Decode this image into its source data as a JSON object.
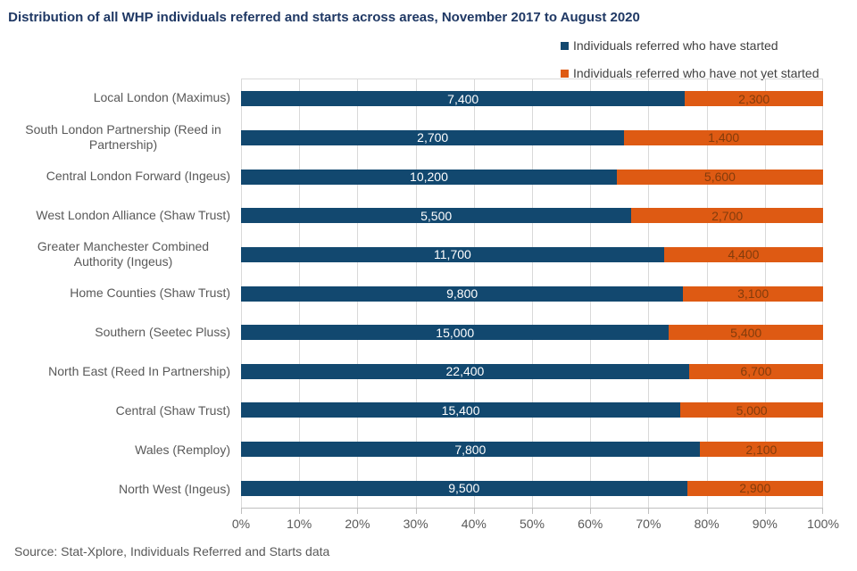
{
  "page": {
    "title": "Distribution of all WHP individuals referred and starts across areas, November 2017 to August 2020",
    "source_note": "Source: Stat-Xplore, Individuals Referred and Starts data"
  },
  "colors": {
    "title_text": "#1F3864",
    "axis_text": "#595959",
    "gridline": "#D9D9D9",
    "axis_line": "#BFBFBF",
    "series_started": "#12486F",
    "series_not_started": "#DE5A13",
    "label_on_started": "#FFFFFF",
    "label_on_not_started": "#833C0C"
  },
  "chart_data": {
    "type": "bar",
    "subtype": "100-percent-stacked-horizontal",
    "title": "Distribution of all WHP individuals referred and starts across areas, November 2017 to August 2020",
    "categories": [
      "Local London (Maximus)",
      "South London Partnership (Reed in Partnership)",
      "Central London Forward (Ingeus)",
      "West London Alliance (Shaw Trust)",
      "Greater Manchester Combined Authority (Ingeus)",
      "Home Counties (Shaw Trust)",
      "Southern (Seetec Pluss)",
      "North East (Reed In Partnership)",
      "Central (Shaw Trust)",
      "Wales (Remploy)",
      "North West (Ingeus)"
    ],
    "series": [
      {
        "name": "Individuals referred who have started",
        "color": "#12486F",
        "label_color": "#FFFFFF",
        "values": [
          7400,
          2700,
          10200,
          5500,
          11700,
          9800,
          15000,
          22400,
          15400,
          7800,
          9500
        ]
      },
      {
        "name": "Individuals referred who have not yet started",
        "color": "#DE5A13",
        "label_color": "#833C0C",
        "values": [
          2300,
          1400,
          5600,
          2700,
          4400,
          3100,
          5400,
          6700,
          5000,
          2100,
          2900
        ]
      }
    ],
    "x_ticks": [
      "0%",
      "10%",
      "20%",
      "30%",
      "40%",
      "50%",
      "60%",
      "70%",
      "80%",
      "90%",
      "100%"
    ],
    "xlim": [
      0,
      100
    ],
    "grid": true,
    "legend_position": "top-right",
    "value_label_format": "thousands-separated, centered in each segment",
    "source": "Source: Stat-Xplore, Individuals Referred and Starts data"
  }
}
